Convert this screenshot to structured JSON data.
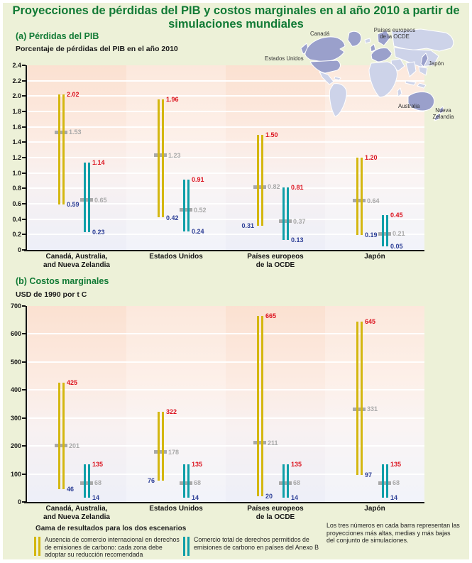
{
  "title": "Proyecciones de pérdidas del PIB y costos marginales en al año 2010 a partir de simulaciones mundiales",
  "colors": {
    "bar_no_trade": "#d4b710",
    "bar_full_trade": "#0f9fa8",
    "label_high": "#dc1420",
    "label_median": "#a9a9a9",
    "label_low": "#2c3e96",
    "title_green": "#117a35",
    "map_highlight": "#9aa0cb",
    "map_other": "#cdd3e9"
  },
  "map": {
    "labels": {
      "canada": "Canadá",
      "europe": "Países europeos\nde la OCDE",
      "us": "Estados Unidos",
      "japan": "Japón",
      "australia": "Australia",
      "nz": "Nueva\nZelandia"
    }
  },
  "chart_data": [
    {
      "type": "range-bar",
      "label": "(a) Pérdidas del PIB",
      "title": "Porcentaje de pérdidas del PIB en el año 2010",
      "ylim": [
        0,
        2.4
      ],
      "yticks": [
        "2.4",
        "2.2",
        "2.0",
        "1.8",
        "1.6",
        "1.4",
        "1.2",
        "1.0",
        "0.8",
        "0.6",
        "0.4",
        "0.2",
        "0"
      ],
      "grid": "white horizontal lines every 0.2",
      "categories": [
        "Canadá, Australia,\nand Nueva Zelandia",
        "Estados Unidos",
        "Países europeos\nde la OCDE",
        "Japón"
      ],
      "series": [
        {
          "name": "Ausencia de comercio internacional en derechos de emisiones de carbono: cada zona debe adoptar su reducción recomendada",
          "color": "#d4b710",
          "high": [
            "2.02",
            "1.96",
            "1.50",
            "1.20"
          ],
          "median": [
            "1.53",
            "1.23",
            "0.82",
            "0.64"
          ],
          "low": [
            "0.59",
            "0.42",
            "0.31",
            "0.19"
          ]
        },
        {
          "name": "Comercio total de derechos permitidos de emisiones de carbono en países del Anexo B",
          "color": "#0f9fa8",
          "high": [
            "1.14",
            "0.91",
            "0.81",
            "0.45"
          ],
          "median": [
            "0.65",
            "0.52",
            "0.37",
            "0.21"
          ],
          "low": [
            "0.23",
            "0.24",
            "0.13",
            "0.05"
          ]
        }
      ]
    },
    {
      "type": "range-bar",
      "label": "(b) Costos marginales",
      "title": "USD de 1990 por t C",
      "ylim": [
        0,
        700
      ],
      "yticks": [
        "700",
        "600",
        "500",
        "400",
        "300",
        "200",
        "100",
        "0"
      ],
      "grid": "white horizontal lines every 100",
      "categories": [
        "Canadá, Australia,\nand Nueva Zelandia",
        "Estados Unidos",
        "Países europeos\nde la OCDE",
        "Japón"
      ],
      "series": [
        {
          "name": "Ausencia de comercio internacional en derechos de emisiones de carbono: cada zona debe adoptar su reducción recomendada",
          "color": "#d4b710",
          "high": [
            "425",
            "322",
            "665",
            "645"
          ],
          "median": [
            "201",
            "178",
            "211",
            "331"
          ],
          "low": [
            "46",
            "76",
            "20",
            "97"
          ]
        },
        {
          "name": "Comercio total de derechos permitidos de emisiones de carbono en países del Anexo B",
          "color": "#0f9fa8",
          "high": [
            "135",
            "135",
            "135",
            "135"
          ],
          "median": [
            "68",
            "68",
            "68",
            "68"
          ],
          "low": [
            "14",
            "14",
            "14",
            "14"
          ]
        }
      ]
    }
  ],
  "legend": {
    "title": "Gama de resultados para los dos escenarios",
    "items": [
      {
        "label": "Ausencia de comercio internacional en derechos de emisiones de carbono: cada zona debe adoptar su reducción recomendada",
        "color": "#d4b710"
      },
      {
        "label": "Comercio total de derechos permitidos de emisiones de carbono en países del Anexo B",
        "color": "#0f9fa8"
      }
    ]
  },
  "note": "Los tres números en cada barra representan las proyecciones más altas, medias y más bajas del conjunto de simulaciones."
}
